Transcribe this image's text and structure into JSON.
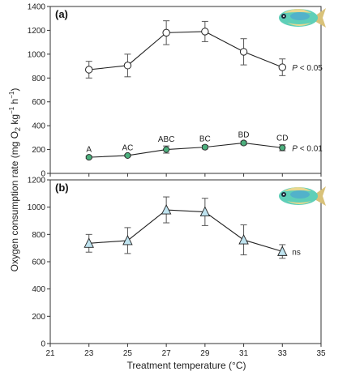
{
  "chart_data": [
    {
      "panel_label": "(a)",
      "type": "line",
      "ylim": [
        0,
        1400
      ],
      "xlim": [
        21,
        35
      ],
      "yticks": [
        0,
        200,
        400,
        600,
        800,
        1000,
        1200,
        1400
      ],
      "x": [
        23,
        25,
        27,
        29,
        31,
        33
      ],
      "series": [
        {
          "marker": "open-circle",
          "values": [
            870,
            905,
            1180,
            1190,
            1020,
            890
          ],
          "errors": [
            70,
            95,
            100,
            85,
            110,
            70
          ],
          "annotation": "P < 0.05"
        },
        {
          "marker": "filled-circle",
          "color": "#4caf7d",
          "values": [
            135,
            150,
            200,
            220,
            255,
            215
          ],
          "errors": [
            10,
            10,
            30,
            15,
            15,
            25
          ],
          "letters": [
            "A",
            "AC",
            "ABC",
            "BC",
            "BD",
            "CD"
          ],
          "annotation": "P < 0.01"
        }
      ]
    },
    {
      "panel_label": "(b)",
      "type": "line",
      "ylim": [
        0,
        1200
      ],
      "xlim": [
        21,
        35
      ],
      "yticks": [
        0,
        200,
        400,
        600,
        800,
        1000,
        1200
      ],
      "x": [
        23,
        25,
        27,
        29,
        31,
        33
      ],
      "series": [
        {
          "marker": "triangle",
          "color": "#bfe3ef",
          "values": [
            735,
            755,
            980,
            965,
            760,
            675
          ],
          "errors": [
            65,
            95,
            95,
            100,
            110,
            50
          ],
          "annotation": "ns"
        }
      ]
    }
  ],
  "axes": {
    "ylabel_main": "Oxygen consumption rate (mg O",
    "ylabel_sub": "2",
    "ylabel_tail": " kg",
    "ylabel_exp1": "−1",
    "ylabel_h": " h",
    "ylabel_exp2": "−1",
    "ylabel_close": ")",
    "xlabel": "Treatment temperature (°C)",
    "xticks": [
      21,
      23,
      25,
      27,
      29,
      31,
      33,
      35
    ]
  },
  "icons": {
    "fish_a": "fish-icon",
    "fish_b": "fish-icon"
  }
}
